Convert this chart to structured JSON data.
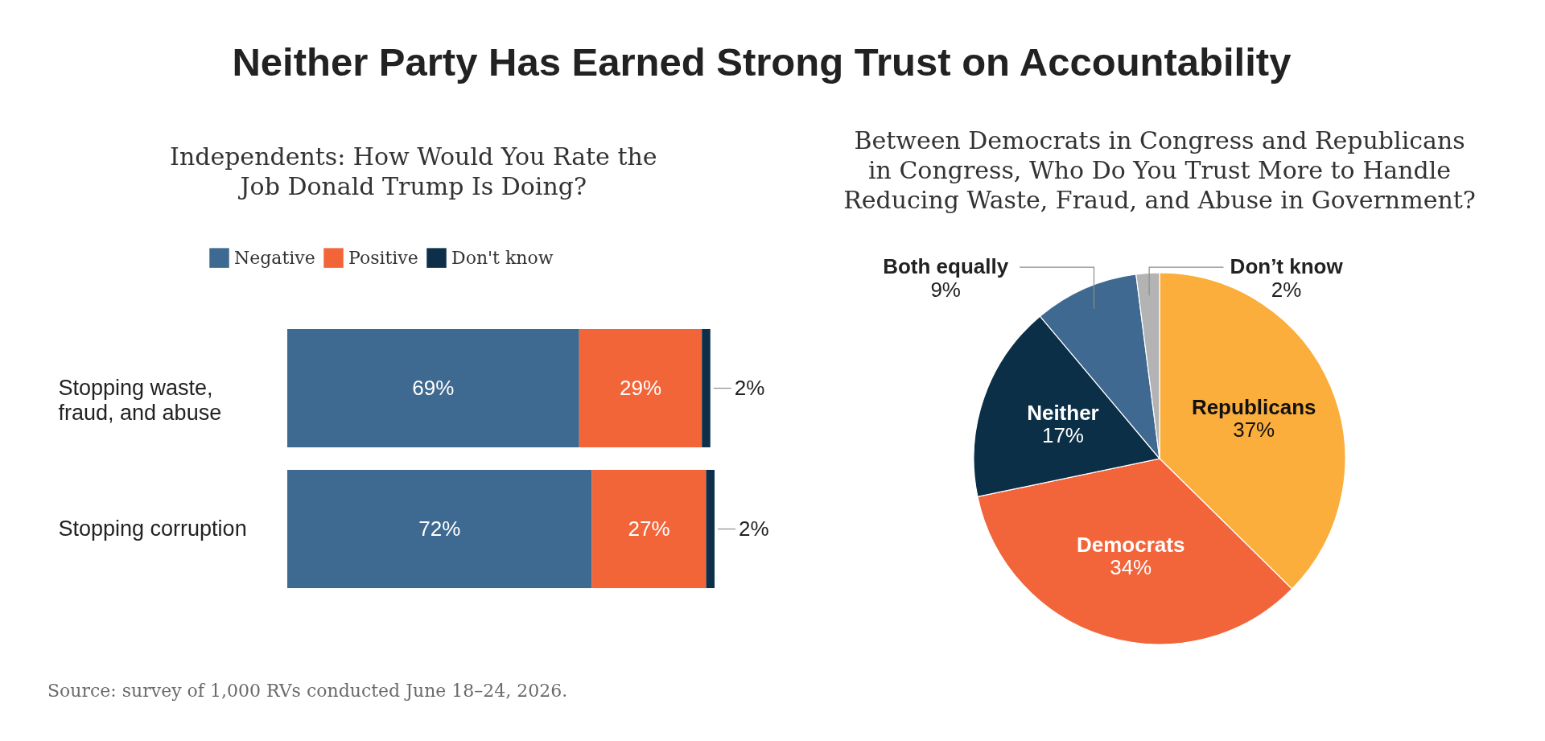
{
  "chart_data": [
    {
      "type": "other",
      "title": "Neither Party Has Earned Strong Trust on Accountability",
      "annotations": [
        "Source: survey of 1,000 RVs conducted June 18–24, 2026."
      ]
    },
    {
      "type": "bar",
      "title": "Independents: How Would You Rate the Job Donald Trump Is Doing?",
      "orientation": "horizontal",
      "stacked": true,
      "categories": [
        "Stopping waste, fraud, and abuse",
        "Stopping corruption"
      ],
      "series": [
        {
          "name": "Negative",
          "color": "#3e6990",
          "values": [
            69,
            72
          ],
          "value_labels": [
            "69%",
            "72%"
          ]
        },
        {
          "name": "Positive",
          "color": "#f26539",
          "values": [
            29,
            27
          ],
          "value_labels": [
            "29%",
            "27%"
          ]
        },
        {
          "name": "Don't know",
          "color": "#0d2f4a",
          "values": [
            2,
            2
          ],
          "value_labels": [
            "2%",
            "2%"
          ]
        }
      ],
      "legend": "top",
      "tick_labels": "y"
    },
    {
      "type": "pie",
      "title": "Between Democrats in Congress and Republicans in Congress, Who Do You Trust More to Handle Reducing Waste, Fraud, and Abuse in Government?",
      "categories": [
        "Republicans",
        "Democrats",
        "Neither",
        "Both equally",
        "Don’t know"
      ],
      "values": [
        37,
        34,
        17,
        9,
        2
      ],
      "colors": [
        "#fbae3c",
        "#f2643a",
        "#0c2f48",
        "#3f6990",
        "#b3b3b3"
      ],
      "value_labels": [
        "37%",
        "34%",
        "17%",
        "9%",
        "2%"
      ]
    }
  ]
}
